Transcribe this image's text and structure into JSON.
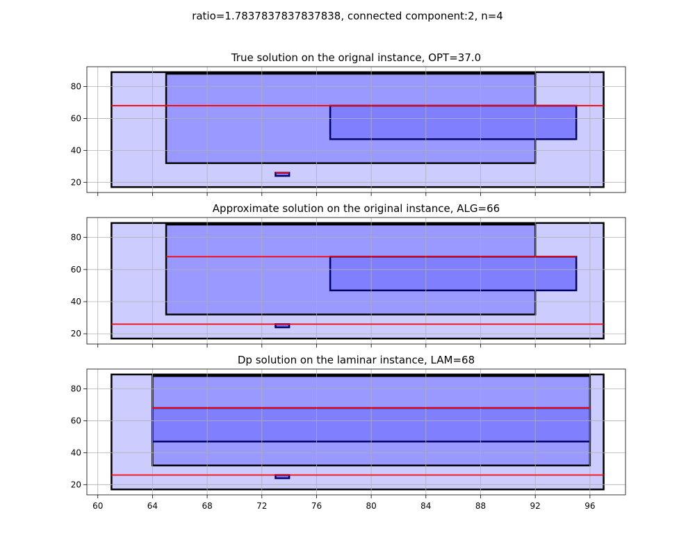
{
  "figure": {
    "suptitle": "ratio=1.7837837837837838, connected component:2, n=4"
  },
  "chart_data": [
    {
      "type": "rectangles",
      "title": "True solution on the orignal instance, OPT=37.0",
      "xlim": [
        59.2,
        98.6
      ],
      "ylim": [
        13.6,
        92.4
      ],
      "xticks": [
        60,
        64,
        68,
        72,
        76,
        80,
        84,
        88,
        92,
        96
      ],
      "yticks": [
        20,
        40,
        60,
        80
      ],
      "show_xticklabels": false,
      "grid": true,
      "rects": [
        {
          "x0": 61,
          "x1": 97,
          "y0": 17,
          "y1": 89,
          "fill": "#ccccff",
          "edge": "#000000"
        },
        {
          "x0": 65,
          "x1": 92,
          "y0": 32,
          "y1": 88,
          "fill": "#9999ff",
          "edge": "#000000"
        },
        {
          "x0": 77,
          "x1": 95,
          "y0": 47,
          "y1": 68,
          "fill": "#8080ff",
          "edge": "#000066"
        },
        {
          "x0": 73,
          "x1": 74,
          "y0": 24,
          "y1": 26,
          "fill": "#8080ff",
          "edge": "#000066"
        }
      ],
      "lines": [
        {
          "x0": 61,
          "x1": 97,
          "y": 68,
          "color": "#ff0000"
        },
        {
          "x0": 73,
          "x1": 74,
          "y": 26,
          "color": "#ff0000"
        }
      ]
    },
    {
      "type": "rectangles",
      "title": "Approximate solution on the original instance, ALG=66",
      "xlim": [
        59.2,
        98.6
      ],
      "ylim": [
        13.6,
        92.4
      ],
      "xticks": [
        60,
        64,
        68,
        72,
        76,
        80,
        84,
        88,
        92,
        96
      ],
      "yticks": [
        20,
        40,
        60,
        80
      ],
      "show_xticklabels": false,
      "grid": true,
      "rects": [
        {
          "x0": 61,
          "x1": 97,
          "y0": 17,
          "y1": 89,
          "fill": "#ccccff",
          "edge": "#000000"
        },
        {
          "x0": 65,
          "x1": 92,
          "y0": 32,
          "y1": 88,
          "fill": "#9999ff",
          "edge": "#000000"
        },
        {
          "x0": 77,
          "x1": 95,
          "y0": 47,
          "y1": 68,
          "fill": "#8080ff",
          "edge": "#000066"
        },
        {
          "x0": 73,
          "x1": 74,
          "y0": 24,
          "y1": 26,
          "fill": "#8080ff",
          "edge": "#000066"
        }
      ],
      "lines": [
        {
          "x0": 65,
          "x1": 95,
          "y": 68,
          "color": "#ff0000"
        },
        {
          "x0": 61,
          "x1": 97,
          "y": 26,
          "color": "#ff0000"
        }
      ]
    },
    {
      "type": "rectangles",
      "title": "Dp solution on the laminar instance, LAM=68",
      "xlim": [
        59.2,
        98.6
      ],
      "ylim": [
        13.6,
        92.4
      ],
      "xticks": [
        60,
        64,
        68,
        72,
        76,
        80,
        84,
        88,
        92,
        96
      ],
      "yticks": [
        20,
        40,
        60,
        80
      ],
      "show_xticklabels": true,
      "grid": true,
      "rects": [
        {
          "x0": 61,
          "x1": 97,
          "y0": 17,
          "y1": 89,
          "fill": "#ccccff",
          "edge": "#000000"
        },
        {
          "x0": 64,
          "x1": 96,
          "y0": 32,
          "y1": 88,
          "fill": "#9999ff",
          "edge": "#000000"
        },
        {
          "x0": 64,
          "x1": 96,
          "y0": 47,
          "y1": 68,
          "fill": "#8080ff",
          "edge": "#000066"
        },
        {
          "x0": 73,
          "x1": 74,
          "y0": 24,
          "y1": 26,
          "fill": "#8080ff",
          "edge": "#000066"
        }
      ],
      "lines": [
        {
          "x0": 64,
          "x1": 96,
          "y": 68,
          "color": "#ff0000"
        },
        {
          "x0": 61,
          "x1": 97,
          "y": 26,
          "color": "#ff0000"
        }
      ]
    }
  ]
}
